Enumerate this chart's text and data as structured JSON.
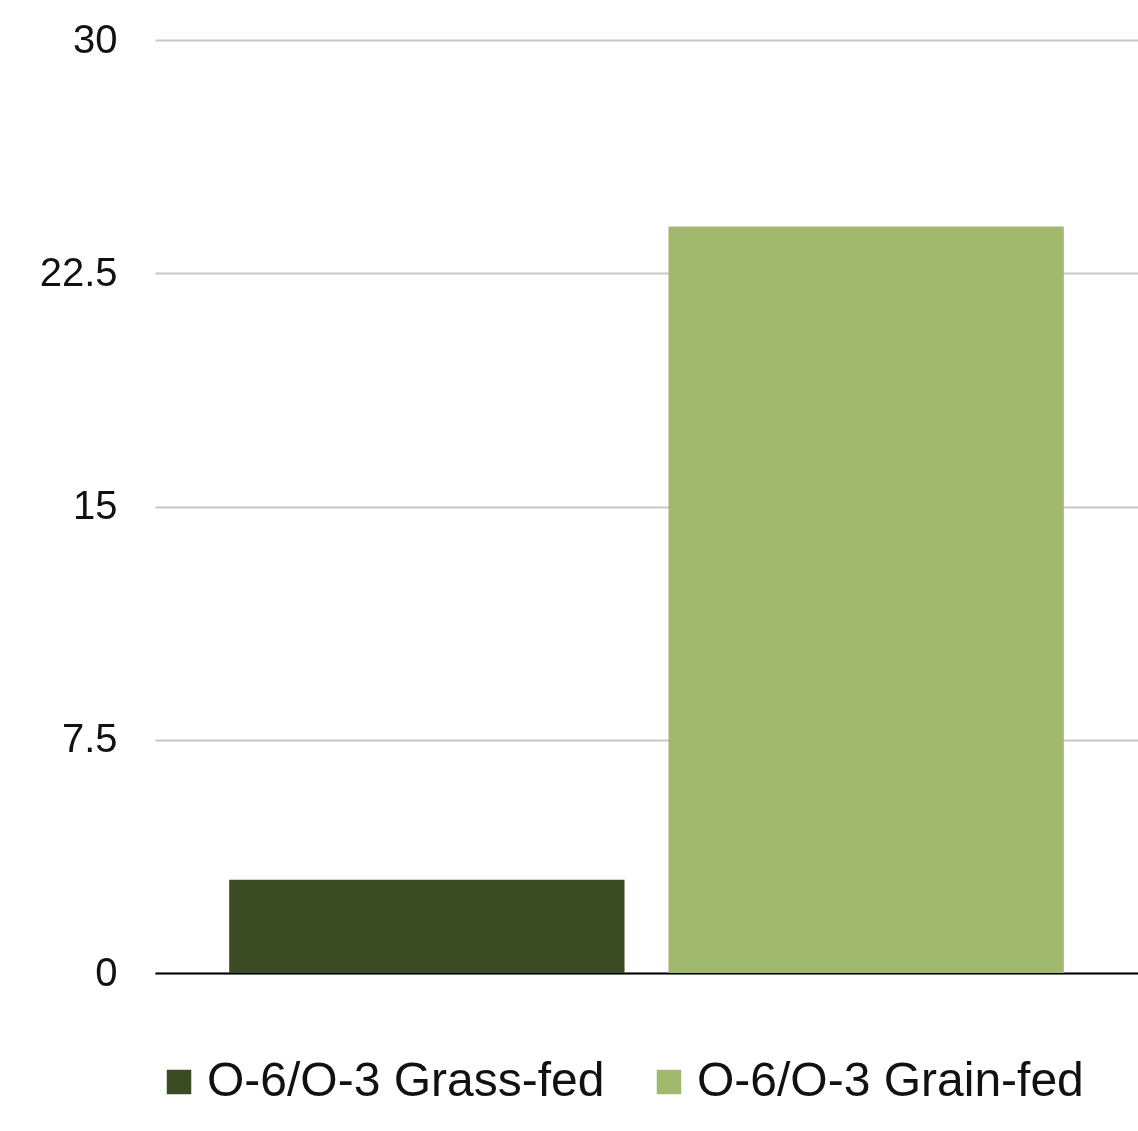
{
  "chart_data": {
    "type": "bar",
    "categories": [
      null
    ],
    "series": [
      {
        "name": "O-6/O-3 Grass-fed",
        "color": "#3b4b23",
        "values": [
          3
        ]
      },
      {
        "name": "O-6/O-3 Grain-fed",
        "color": "#a1b96f",
        "values": [
          24
        ]
      }
    ],
    "ylim": [
      0,
      30
    ],
    "yticks": [
      0,
      7.5,
      15,
      22.5,
      30
    ],
    "grid": "y",
    "legend": "bottom",
    "tick_labels": "y"
  }
}
